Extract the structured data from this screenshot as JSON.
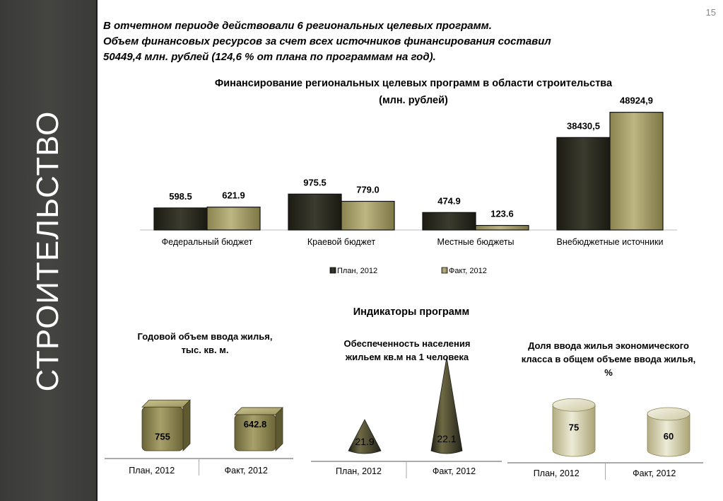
{
  "page_number": "15",
  "sidebar": {
    "title": "СТРОИТЕЛЬСТВО"
  },
  "intro": {
    "line1": "В отчетном периоде действовали 6 региональных целевых программ.",
    "line2": "Объем финансовых ресурсов за счет всех источников  финансирования составил",
    "line3": "50449,4 млн. рублей (124,6 % от плана по программам на год)."
  },
  "colors": {
    "plan": "#2c2c22",
    "fact": "#a39c66",
    "sidebar": "#3f3f3c"
  },
  "chart_data": [
    {
      "type": "bar",
      "title": "Финансирование региональных целевых программ в области строительства",
      "subtitle": "(млн. рублей)",
      "categories": [
        "Федеральный бюджет",
        "Краевой бюджет",
        "Местные бюджеты",
        "Внебюджетные источники"
      ],
      "series": [
        {
          "name": "План, 2012",
          "values": [
            598.5,
            975.5,
            474.9,
            38430.5
          ],
          "labels": [
            "598.5",
            "975.5",
            "474.9",
            "38430,5"
          ]
        },
        {
          "name": "Факт, 2012",
          "values": [
            621.9,
            779.0,
            123.6,
            48924.9
          ],
          "labels": [
            "621.9",
            "779.0",
            "123.6",
            "48924,9"
          ]
        }
      ],
      "legend": "bottom"
    },
    {
      "type": "bar",
      "title": "Годовой объем ввода жилья, тыс. кв. м.",
      "categories": [
        "План, 2012",
        "Факт, 2012"
      ],
      "values": [
        755,
        642.8
      ],
      "labels": [
        "755",
        "642.8"
      ]
    },
    {
      "type": "bar",
      "title": "Обеспеченность населения жильем кв.м на 1 человека",
      "categories": [
        "План, 2012",
        "Факт, 2012"
      ],
      "values": [
        21.9,
        22.1
      ],
      "labels": [
        "21.9",
        "22.1"
      ]
    },
    {
      "type": "bar",
      "title": "Доля ввода жилья экономического класса в общем объеме ввода жилья, %",
      "categories": [
        "План, 2012",
        "Факт, 2012"
      ],
      "values": [
        75,
        60
      ],
      "labels": [
        "75",
        "60"
      ]
    }
  ],
  "indicators": {
    "title": "Индикаторы программ",
    "housing_volume": {
      "title1": "Годовой объем ввода жилья,",
      "title2": "тыс. кв. м."
    },
    "provision": {
      "title1": "Обеспеченность населения",
      "title2": "жильем кв.м на 1 человека"
    },
    "economy_share": {
      "title1": "Доля ввода жилья экономического",
      "title2": "класса в общем объеме ввода жилья,",
      "title3": "%"
    }
  }
}
